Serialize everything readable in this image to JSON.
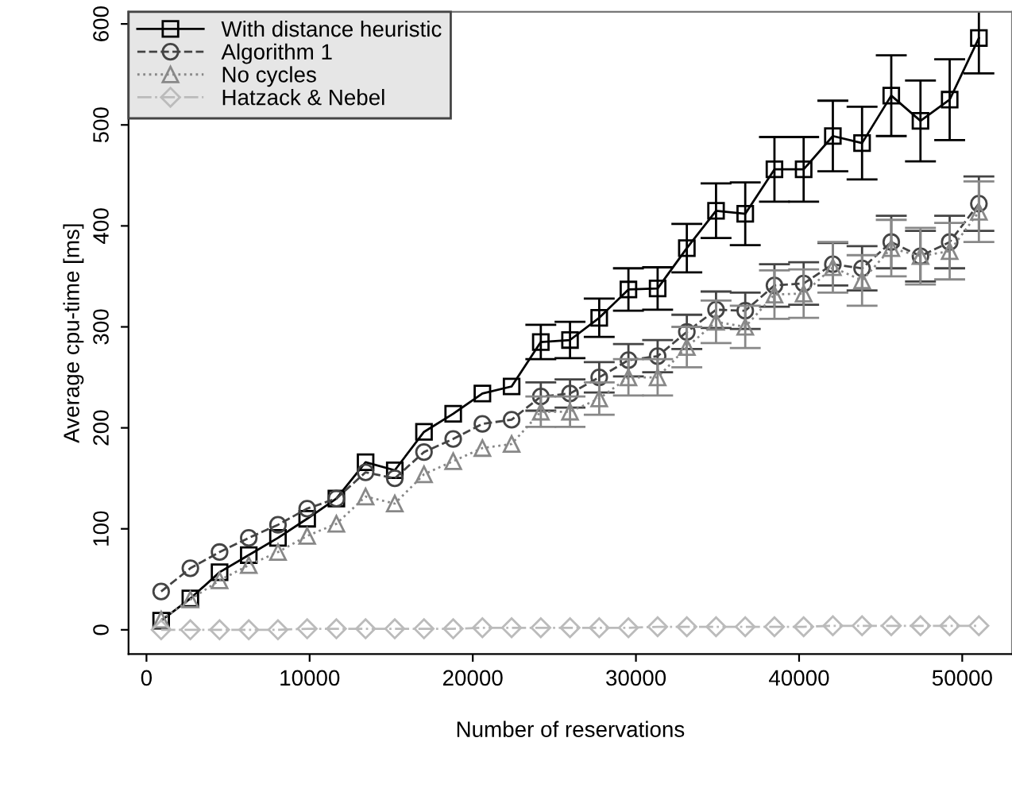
{
  "chart_data": {
    "type": "line",
    "xlabel": "Number of reservations",
    "ylabel": "Average cpu-time [ms]",
    "x": [
      900,
      2690,
      4480,
      6270,
      8060,
      9850,
      11640,
      13430,
      15220,
      17010,
      18800,
      20590,
      22380,
      24170,
      25960,
      27750,
      29540,
      31330,
      33120,
      34910,
      36700,
      38490,
      40280,
      42070,
      43860,
      45650,
      47440,
      49230,
      51020
    ],
    "xlim": [
      -1100,
      53050
    ],
    "xticks": [
      0,
      10000,
      20000,
      30000,
      40000,
      50000
    ],
    "ylim": [
      -24,
      612
    ],
    "yticks": [
      0,
      100,
      200,
      300,
      400,
      500,
      600
    ],
    "grid": false,
    "legend": "top left",
    "series": [
      {
        "name": "With distance heuristic",
        "color": "#000000",
        "marker": "square",
        "line_style": "solid",
        "values": [
          9,
          31,
          57,
          74,
          91,
          110,
          130,
          166,
          158,
          196,
          214,
          234,
          241,
          285,
          287,
          309,
          337,
          338,
          378,
          415,
          412,
          456,
          456,
          489,
          482,
          529,
          504,
          525,
          586
        ],
        "errors": [
          null,
          null,
          null,
          null,
          null,
          null,
          null,
          null,
          null,
          null,
          null,
          null,
          null,
          17,
          18,
          19,
          21,
          21,
          24,
          27,
          31,
          32,
          32,
          35,
          36,
          40,
          40,
          40,
          35
        ]
      },
      {
        "name": "Algorithm 1",
        "color": "#444444",
        "marker": "circle",
        "line_style": "dashed",
        "values": [
          38,
          61,
          77,
          91,
          104,
          120,
          130,
          156,
          150,
          176,
          189,
          204,
          208,
          231,
          234,
          250,
          267,
          271,
          295,
          317,
          316,
          341,
          343,
          362,
          358,
          384,
          370,
          384,
          422
        ],
        "errors": [
          null,
          null,
          null,
          null,
          null,
          null,
          null,
          null,
          null,
          null,
          null,
          null,
          null,
          14,
          14,
          15,
          16,
          16,
          17,
          18,
          18,
          21,
          21,
          21,
          22,
          26,
          25,
          26,
          27
        ]
      },
      {
        "name": "No cycles",
        "color": "#888888",
        "marker": "triangle",
        "line_style": "dotted",
        "values": [
          10,
          30,
          49,
          64,
          77,
          93,
          105,
          132,
          125,
          154,
          167,
          180,
          184,
          216,
          216,
          229,
          250,
          250,
          280,
          305,
          300,
          332,
          333,
          359,
          346,
          378,
          370,
          375,
          414
        ],
        "errors": [
          null,
          null,
          null,
          null,
          null,
          null,
          null,
          null,
          null,
          null,
          null,
          null,
          null,
          15,
          15,
          16,
          18,
          18,
          20,
          21,
          21,
          24,
          24,
          25,
          25,
          28,
          28,
          28,
          30
        ]
      },
      {
        "name": "Hatzack & Nebel",
        "color": "#bbbbbb",
        "marker": "diamond",
        "line_style": "dashdot",
        "values": [
          0,
          0,
          0,
          0,
          0,
          1,
          1,
          1,
          1,
          1,
          1,
          2,
          2,
          2,
          2,
          2,
          2,
          3,
          3,
          3,
          3,
          3,
          3,
          4,
          4,
          4,
          4,
          4,
          4
        ]
      }
    ]
  }
}
